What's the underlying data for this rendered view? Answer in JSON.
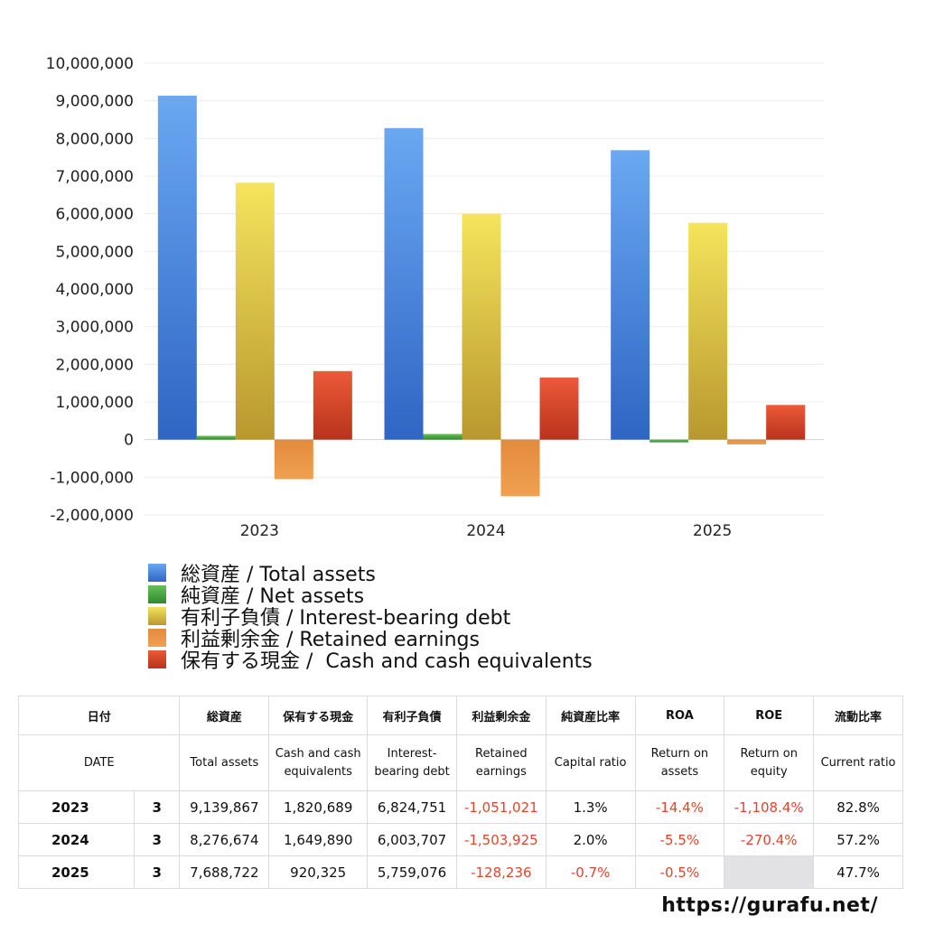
{
  "chart_data": {
    "type": "bar",
    "categories": [
      "2023",
      "2024",
      "2025"
    ],
    "ylim": [
      -2000000,
      10000000
    ],
    "y_ticks": [
      10000000,
      9000000,
      8000000,
      7000000,
      6000000,
      5000000,
      4000000,
      3000000,
      2000000,
      1000000,
      0,
      -1000000,
      -2000000
    ],
    "y_tick_labels": [
      "10,000,000",
      "9,000,000",
      "8,000,000",
      "7,000,000",
      "6,000,000",
      "5,000,000",
      "4,000,000",
      "3,000,000",
      "2,000,000",
      "1,000,000",
      "0",
      "-1,000,000",
      "-2,000,000"
    ],
    "grid": true,
    "legend_position": "bottom",
    "series": [
      {
        "name": "総資産 / Total assets",
        "color_top": "#6aa8f2",
        "color_bottom": "#2f65c4",
        "values": [
          9139867,
          8276674,
          7688722
        ]
      },
      {
        "name": "純資産 / Net assets",
        "color_top": "#68c05a",
        "color_bottom": "#2f8a2c",
        "values": [
          100000,
          150000,
          -40000
        ]
      },
      {
        "name": "有利子負債 / Interest-bearing debt",
        "color_top": "#f5e45c",
        "color_bottom": "#b8982e",
        "values": [
          6824751,
          6003707,
          5759076
        ]
      },
      {
        "name": "利益剰余金 / Retained earnings",
        "color_top": "#e38a3e",
        "color_bottom": "#f0a050",
        "values": [
          -1051021,
          -1503925,
          -128236
        ]
      },
      {
        "name": "保有する現金 /  Cash and cash equivalents",
        "color_top": "#ec5a38",
        "color_bottom": "#b8331c",
        "values": [
          1820689,
          1649890,
          920325
        ]
      }
    ]
  },
  "table": {
    "header_jp": [
      "日付",
      "総資産",
      "保有する現金",
      "有利子負債",
      "利益剰余金",
      "純資産比率",
      "ROA",
      "ROE",
      "流動比率"
    ],
    "header_en": [
      "DATE",
      "Total assets",
      "Cash and cash equivalents",
      "Interest-bearing debt",
      "Retained earnings",
      "Capital ratio",
      "Return on assets",
      "Return on equity",
      "Current ratio"
    ],
    "rows": [
      {
        "year": "2023",
        "month": "3",
        "cells": [
          {
            "v": "9,139,867",
            "neg": false
          },
          {
            "v": "1,820,689",
            "neg": false
          },
          {
            "v": "6,824,751",
            "neg": false
          },
          {
            "v": "-1,051,021",
            "neg": true
          },
          {
            "v": "1.3%",
            "neg": false
          },
          {
            "v": "-14.4%",
            "neg": true
          },
          {
            "v": "-1,108.4%",
            "neg": true
          },
          {
            "v": "82.8%",
            "neg": false
          }
        ]
      },
      {
        "year": "2024",
        "month": "3",
        "cells": [
          {
            "v": "8,276,674",
            "neg": false
          },
          {
            "v": "1,649,890",
            "neg": false
          },
          {
            "v": "6,003,707",
            "neg": false
          },
          {
            "v": "-1,503,925",
            "neg": true
          },
          {
            "v": "2.0%",
            "neg": false
          },
          {
            "v": "-5.5%",
            "neg": true
          },
          {
            "v": "-270.4%",
            "neg": true
          },
          {
            "v": "57.2%",
            "neg": false
          }
        ]
      },
      {
        "year": "2025",
        "month": "3",
        "cells": [
          {
            "v": "7,688,722",
            "neg": false
          },
          {
            "v": "920,325",
            "neg": false
          },
          {
            "v": "5,759,076",
            "neg": false
          },
          {
            "v": "-128,236",
            "neg": true
          },
          {
            "v": "-0.7%",
            "neg": true
          },
          {
            "v": "-0.5%",
            "neg": true
          },
          {
            "v": "",
            "neg": false,
            "empty": true
          },
          {
            "v": "47.7%",
            "neg": false
          }
        ]
      }
    ]
  },
  "footer": {
    "url": "https://gurafu.net/"
  }
}
